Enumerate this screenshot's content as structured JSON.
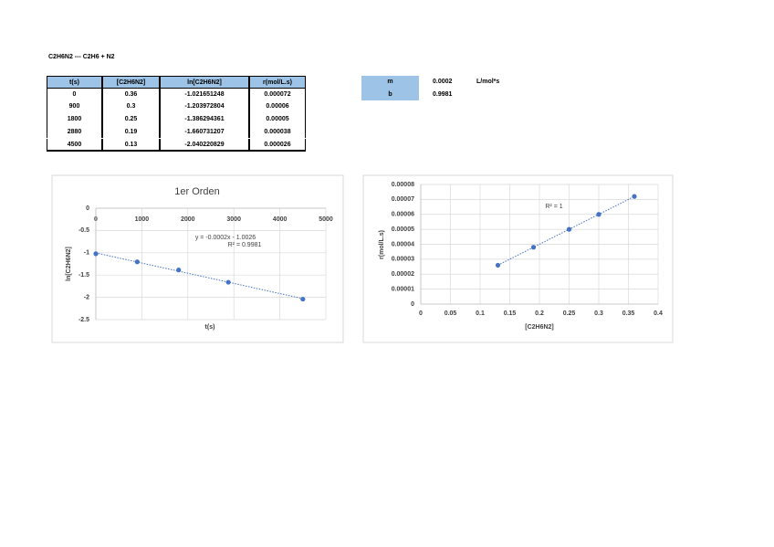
{
  "header": {
    "title": "C2H6N2 --- C2H6 + N2"
  },
  "table": {
    "columns": [
      "t(s)",
      "[C2H6N2]",
      "ln[C2H6N2]",
      "r(mol/L.s)"
    ],
    "rows": [
      [
        0,
        0.36,
        -1.021651248,
        7.2e-05
      ],
      [
        900,
        0.3,
        -1.203972804,
        6e-05
      ],
      [
        1800,
        0.25,
        -1.386294361,
        5e-05
      ],
      [
        2880,
        0.19,
        -1.660731207,
        3.8e-05
      ],
      [
        4500,
        0.13,
        -2.040220829,
        2.6e-05
      ]
    ]
  },
  "params": {
    "rows": [
      [
        "m",
        0.0002,
        "L/mol*s"
      ],
      [
        "b",
        0.9981
      ]
    ]
  },
  "chart_data": [
    {
      "type": "scatter",
      "title": "1er Orden",
      "x_label": "t(s)",
      "y_label": "ln[C2H6N2]",
      "x": [
        0,
        900,
        1800,
        2880,
        4500
      ],
      "series": [
        {
          "name": "ln[C2H6N2]",
          "color": "#4472c4",
          "values": [
            -1.021651248,
            -1.203972804,
            -1.386294361,
            -1.660731207,
            -2.040220829
          ]
        }
      ],
      "xlim": [
        0,
        5000
      ],
      "xticks": [
        0,
        1000,
        2000,
        3000,
        4000,
        5000
      ],
      "ylim": [
        -2.5,
        0
      ],
      "yticks": [
        0,
        -0.5,
        -1,
        -1.5,
        -2,
        -2.5
      ],
      "grid": true,
      "trendline": true,
      "annotations": [
        "y = -0.0002x - 1.0026",
        "R² = 0.9981"
      ]
    },
    {
      "type": "scatter",
      "x_label": "[C2H6N2]",
      "y_label": "r(mol/L.s)",
      "x": [
        0.36,
        0.3,
        0.25,
        0.19,
        0.13
      ],
      "series": [
        {
          "name": "r(mol/L.s)",
          "color": "#4472c4",
          "values": [
            7.2e-05,
            6e-05,
            5e-05,
            3.8e-05,
            2.6e-05
          ]
        }
      ],
      "xlim": [
        0,
        0.4
      ],
      "xticks": [
        0,
        0.05,
        0.1,
        0.15,
        0.2,
        0.25,
        0.3,
        0.35,
        0.4
      ],
      "ylim": [
        0,
        8e-05
      ],
      "yticks": [
        0,
        1e-05,
        2e-05,
        3e-05,
        4e-05,
        5e-05,
        6e-05,
        7e-05,
        8e-05
      ],
      "grid": true,
      "trendline": true,
      "annotations": [
        "R² = 1"
      ]
    }
  ]
}
